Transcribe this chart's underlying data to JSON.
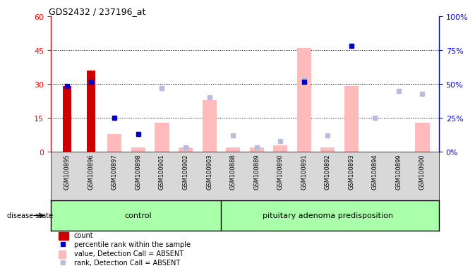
{
  "title": "GDS2432 / 237196_at",
  "samples": [
    "GSM100895",
    "GSM100896",
    "GSM100897",
    "GSM100898",
    "GSM100901",
    "GSM100902",
    "GSM100903",
    "GSM100888",
    "GSM100889",
    "GSM100890",
    "GSM100891",
    "GSM100892",
    "GSM100893",
    "GSM100894",
    "GSM100899",
    "GSM100900"
  ],
  "n_control": 7,
  "n_pituitary": 9,
  "count": [
    29,
    36,
    0,
    0,
    0,
    0,
    0,
    0,
    0,
    0,
    0,
    0,
    0,
    0,
    0,
    0
  ],
  "percentile_rank": [
    29,
    31,
    15,
    8,
    0,
    0,
    0,
    0,
    0,
    0,
    31,
    0,
    47,
    0,
    0,
    0
  ],
  "value_absent": [
    0,
    0,
    8,
    2,
    13,
    2,
    23,
    2,
    2,
    3,
    46,
    2,
    29,
    0,
    0,
    13
  ],
  "rank_absent": [
    0,
    0,
    25,
    13,
    47,
    3,
    40,
    12,
    3,
    8,
    53,
    12,
    78,
    25,
    45,
    43
  ],
  "ylim_left": [
    0,
    60
  ],
  "ylim_right": [
    0,
    100
  ],
  "yticks_left": [
    0,
    15,
    30,
    45,
    60
  ],
  "yticks_right": [
    0,
    25,
    50,
    75,
    100
  ],
  "ytick_labels_right": [
    "0%",
    "25%",
    "50%",
    "75%",
    "100%"
  ],
  "group1_label": "control",
  "group2_label": "pituitary adenoma predisposition",
  "disease_state_label": "disease state",
  "legend_items": [
    "count",
    "percentile rank within the sample",
    "value, Detection Call = ABSENT",
    "rank, Detection Call = ABSENT"
  ],
  "legend_colors": [
    "#cc0000",
    "#0000cc",
    "#ffbbbb",
    "#bbbbdd"
  ],
  "plot_bg": "#ffffff",
  "sample_bg": "#d8d8d8",
  "group_bg": "#aaffaa",
  "fig_bg": "#ffffff"
}
